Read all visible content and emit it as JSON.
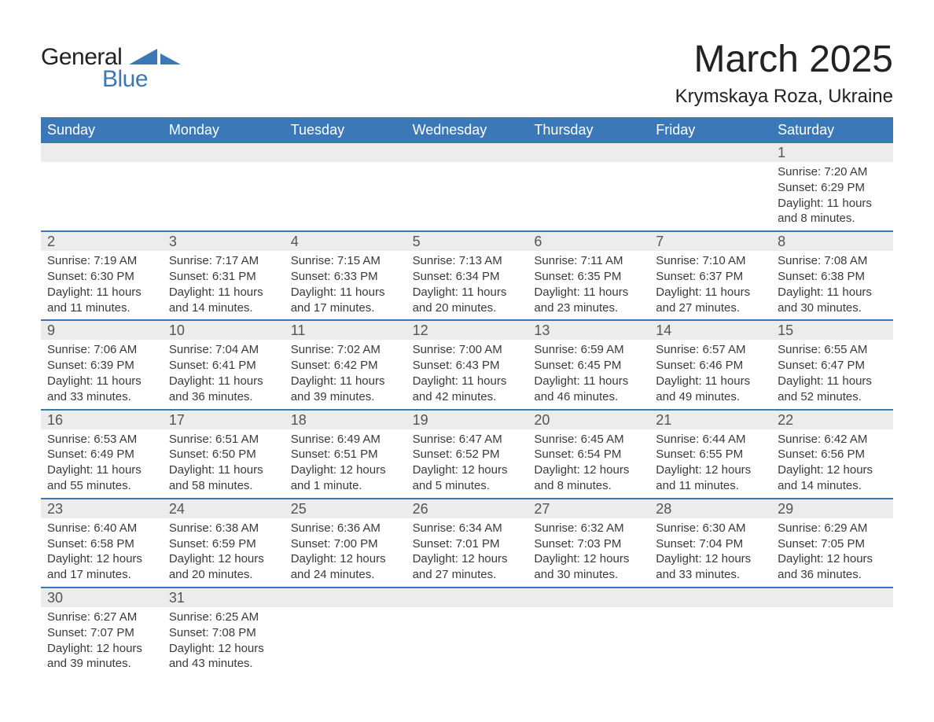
{
  "logo": {
    "line1": "General",
    "line2": "Blue"
  },
  "title": "March 2025",
  "location": "Krymskaya Roza, Ukraine",
  "colors": {
    "header_bg": "#3b78b8",
    "header_text": "#ffffff",
    "daynum_bg": "#ececec",
    "row_divider": "#3b78b8",
    "body_text": "#3a3a3a",
    "logo_blue": "#3b78b8",
    "background": "#ffffff"
  },
  "typography": {
    "title_fontsize": 48,
    "location_fontsize": 24,
    "weekday_fontsize": 18,
    "daynum_fontsize": 18,
    "cell_fontsize": 15,
    "font_family": "Arial"
  },
  "weekdays": [
    "Sunday",
    "Monday",
    "Tuesday",
    "Wednesday",
    "Thursday",
    "Friday",
    "Saturday"
  ],
  "weeks": [
    {
      "daynums": [
        "",
        "",
        "",
        "",
        "",
        "",
        "1"
      ],
      "cells": [
        null,
        null,
        null,
        null,
        null,
        null,
        {
          "sunrise": "Sunrise: 7:20 AM",
          "sunset": "Sunset: 6:29 PM",
          "daylight1": "Daylight: 11 hours",
          "daylight2": "and 8 minutes."
        }
      ]
    },
    {
      "daynums": [
        "2",
        "3",
        "4",
        "5",
        "6",
        "7",
        "8"
      ],
      "cells": [
        {
          "sunrise": "Sunrise: 7:19 AM",
          "sunset": "Sunset: 6:30 PM",
          "daylight1": "Daylight: 11 hours",
          "daylight2": "and 11 minutes."
        },
        {
          "sunrise": "Sunrise: 7:17 AM",
          "sunset": "Sunset: 6:31 PM",
          "daylight1": "Daylight: 11 hours",
          "daylight2": "and 14 minutes."
        },
        {
          "sunrise": "Sunrise: 7:15 AM",
          "sunset": "Sunset: 6:33 PM",
          "daylight1": "Daylight: 11 hours",
          "daylight2": "and 17 minutes."
        },
        {
          "sunrise": "Sunrise: 7:13 AM",
          "sunset": "Sunset: 6:34 PM",
          "daylight1": "Daylight: 11 hours",
          "daylight2": "and 20 minutes."
        },
        {
          "sunrise": "Sunrise: 7:11 AM",
          "sunset": "Sunset: 6:35 PM",
          "daylight1": "Daylight: 11 hours",
          "daylight2": "and 23 minutes."
        },
        {
          "sunrise": "Sunrise: 7:10 AM",
          "sunset": "Sunset: 6:37 PM",
          "daylight1": "Daylight: 11 hours",
          "daylight2": "and 27 minutes."
        },
        {
          "sunrise": "Sunrise: 7:08 AM",
          "sunset": "Sunset: 6:38 PM",
          "daylight1": "Daylight: 11 hours",
          "daylight2": "and 30 minutes."
        }
      ]
    },
    {
      "daynums": [
        "9",
        "10",
        "11",
        "12",
        "13",
        "14",
        "15"
      ],
      "cells": [
        {
          "sunrise": "Sunrise: 7:06 AM",
          "sunset": "Sunset: 6:39 PM",
          "daylight1": "Daylight: 11 hours",
          "daylight2": "and 33 minutes."
        },
        {
          "sunrise": "Sunrise: 7:04 AM",
          "sunset": "Sunset: 6:41 PM",
          "daylight1": "Daylight: 11 hours",
          "daylight2": "and 36 minutes."
        },
        {
          "sunrise": "Sunrise: 7:02 AM",
          "sunset": "Sunset: 6:42 PM",
          "daylight1": "Daylight: 11 hours",
          "daylight2": "and 39 minutes."
        },
        {
          "sunrise": "Sunrise: 7:00 AM",
          "sunset": "Sunset: 6:43 PM",
          "daylight1": "Daylight: 11 hours",
          "daylight2": "and 42 minutes."
        },
        {
          "sunrise": "Sunrise: 6:59 AM",
          "sunset": "Sunset: 6:45 PM",
          "daylight1": "Daylight: 11 hours",
          "daylight2": "and 46 minutes."
        },
        {
          "sunrise": "Sunrise: 6:57 AM",
          "sunset": "Sunset: 6:46 PM",
          "daylight1": "Daylight: 11 hours",
          "daylight2": "and 49 minutes."
        },
        {
          "sunrise": "Sunrise: 6:55 AM",
          "sunset": "Sunset: 6:47 PM",
          "daylight1": "Daylight: 11 hours",
          "daylight2": "and 52 minutes."
        }
      ]
    },
    {
      "daynums": [
        "16",
        "17",
        "18",
        "19",
        "20",
        "21",
        "22"
      ],
      "cells": [
        {
          "sunrise": "Sunrise: 6:53 AM",
          "sunset": "Sunset: 6:49 PM",
          "daylight1": "Daylight: 11 hours",
          "daylight2": "and 55 minutes."
        },
        {
          "sunrise": "Sunrise: 6:51 AM",
          "sunset": "Sunset: 6:50 PM",
          "daylight1": "Daylight: 11 hours",
          "daylight2": "and 58 minutes."
        },
        {
          "sunrise": "Sunrise: 6:49 AM",
          "sunset": "Sunset: 6:51 PM",
          "daylight1": "Daylight: 12 hours",
          "daylight2": "and 1 minute."
        },
        {
          "sunrise": "Sunrise: 6:47 AM",
          "sunset": "Sunset: 6:52 PM",
          "daylight1": "Daylight: 12 hours",
          "daylight2": "and 5 minutes."
        },
        {
          "sunrise": "Sunrise: 6:45 AM",
          "sunset": "Sunset: 6:54 PM",
          "daylight1": "Daylight: 12 hours",
          "daylight2": "and 8 minutes."
        },
        {
          "sunrise": "Sunrise: 6:44 AM",
          "sunset": "Sunset: 6:55 PM",
          "daylight1": "Daylight: 12 hours",
          "daylight2": "and 11 minutes."
        },
        {
          "sunrise": "Sunrise: 6:42 AM",
          "sunset": "Sunset: 6:56 PM",
          "daylight1": "Daylight: 12 hours",
          "daylight2": "and 14 minutes."
        }
      ]
    },
    {
      "daynums": [
        "23",
        "24",
        "25",
        "26",
        "27",
        "28",
        "29"
      ],
      "cells": [
        {
          "sunrise": "Sunrise: 6:40 AM",
          "sunset": "Sunset: 6:58 PM",
          "daylight1": "Daylight: 12 hours",
          "daylight2": "and 17 minutes."
        },
        {
          "sunrise": "Sunrise: 6:38 AM",
          "sunset": "Sunset: 6:59 PM",
          "daylight1": "Daylight: 12 hours",
          "daylight2": "and 20 minutes."
        },
        {
          "sunrise": "Sunrise: 6:36 AM",
          "sunset": "Sunset: 7:00 PM",
          "daylight1": "Daylight: 12 hours",
          "daylight2": "and 24 minutes."
        },
        {
          "sunrise": "Sunrise: 6:34 AM",
          "sunset": "Sunset: 7:01 PM",
          "daylight1": "Daylight: 12 hours",
          "daylight2": "and 27 minutes."
        },
        {
          "sunrise": "Sunrise: 6:32 AM",
          "sunset": "Sunset: 7:03 PM",
          "daylight1": "Daylight: 12 hours",
          "daylight2": "and 30 minutes."
        },
        {
          "sunrise": "Sunrise: 6:30 AM",
          "sunset": "Sunset: 7:04 PM",
          "daylight1": "Daylight: 12 hours",
          "daylight2": "and 33 minutes."
        },
        {
          "sunrise": "Sunrise: 6:29 AM",
          "sunset": "Sunset: 7:05 PM",
          "daylight1": "Daylight: 12 hours",
          "daylight2": "and 36 minutes."
        }
      ]
    },
    {
      "daynums": [
        "30",
        "31",
        "",
        "",
        "",
        "",
        ""
      ],
      "cells": [
        {
          "sunrise": "Sunrise: 6:27 AM",
          "sunset": "Sunset: 7:07 PM",
          "daylight1": "Daylight: 12 hours",
          "daylight2": "and 39 minutes."
        },
        {
          "sunrise": "Sunrise: 6:25 AM",
          "sunset": "Sunset: 7:08 PM",
          "daylight1": "Daylight: 12 hours",
          "daylight2": "and 43 minutes."
        },
        null,
        null,
        null,
        null,
        null
      ]
    }
  ]
}
